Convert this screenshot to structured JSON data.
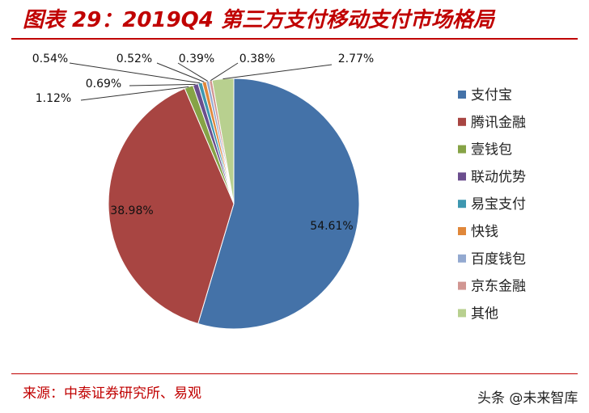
{
  "page": {
    "title": "图表 29：2019Q4 第三方支付移动支付市场格局",
    "source": "来源：中泰证券研究所、易观",
    "watermark": "头条 @未来智库"
  },
  "chart_data": {
    "type": "pie",
    "title": "",
    "categories": [
      "支付宝",
      "腾讯金融",
      "壹钱包",
      "联动优势",
      "易宝支付",
      "快钱",
      "百度钱包",
      "京东金融",
      "其他"
    ],
    "values": [
      54.61,
      38.98,
      1.12,
      0.69,
      0.54,
      0.52,
      0.39,
      0.38,
      2.77
    ],
    "data_labels": [
      "54.61%",
      "38.98%",
      "1.12%",
      "0.69%",
      "0.54%",
      "0.52%",
      "0.39%",
      "0.38%",
      "2.77%"
    ],
    "colors": [
      "#4472A8",
      "#A84542",
      "#86A346",
      "#6B4E8E",
      "#3E97B0",
      "#E0873A",
      "#93A9D0",
      "#D19692",
      "#B8D08F"
    ],
    "legend_position": "right",
    "start_angle_deg": 0,
    "direction": "clockwise"
  }
}
